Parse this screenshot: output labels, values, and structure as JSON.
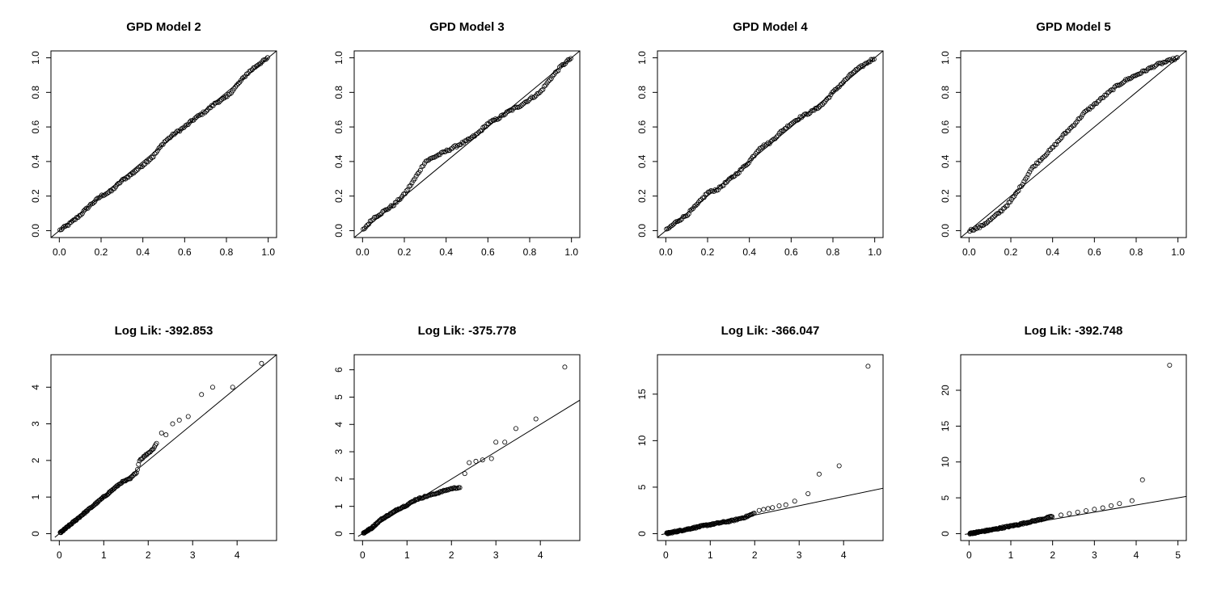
{
  "chart_data": [
    {
      "type": "scatter",
      "title": "GPD Model 2",
      "xlim": [
        0,
        1
      ],
      "ylim": [
        0,
        1
      ],
      "xticks": [
        "0.0",
        "0.2",
        "0.4",
        "0.6",
        "0.8",
        "1.0"
      ],
      "yticks": [
        "0.0",
        "0.2",
        "0.4",
        "0.6",
        "0.8",
        "1.0"
      ],
      "reference_line": [
        [
          0,
          0
        ],
        [
          1,
          1
        ]
      ],
      "curve": [
        [
          0,
          0
        ],
        [
          0.05,
          0.04
        ],
        [
          0.1,
          0.09
        ],
        [
          0.15,
          0.15
        ],
        [
          0.2,
          0.2
        ],
        [
          0.25,
          0.23
        ],
        [
          0.3,
          0.29
        ],
        [
          0.35,
          0.33
        ],
        [
          0.4,
          0.38
        ],
        [
          0.45,
          0.43
        ],
        [
          0.5,
          0.51
        ],
        [
          0.55,
          0.56
        ],
        [
          0.6,
          0.6
        ],
        [
          0.65,
          0.65
        ],
        [
          0.7,
          0.69
        ],
        [
          0.75,
          0.74
        ],
        [
          0.8,
          0.77
        ],
        [
          0.85,
          0.84
        ],
        [
          0.9,
          0.91
        ],
        [
          0.95,
          0.96
        ],
        [
          1.0,
          1.0
        ]
      ]
    },
    {
      "type": "scatter",
      "title": "GPD Model 3",
      "xlim": [
        0,
        1
      ],
      "ylim": [
        0,
        1
      ],
      "xticks": [
        "0.0",
        "0.2",
        "0.4",
        "0.6",
        "0.8",
        "1.0"
      ],
      "yticks": [
        "0.0",
        "0.2",
        "0.4",
        "0.6",
        "0.8",
        "1.0"
      ],
      "reference_line": [
        [
          0,
          0
        ],
        [
          1,
          1
        ]
      ],
      "curve": [
        [
          0,
          0
        ],
        [
          0.05,
          0.07
        ],
        [
          0.1,
          0.11
        ],
        [
          0.15,
          0.15
        ],
        [
          0.2,
          0.21
        ],
        [
          0.25,
          0.3
        ],
        [
          0.3,
          0.4
        ],
        [
          0.35,
          0.43
        ],
        [
          0.4,
          0.46
        ],
        [
          0.45,
          0.49
        ],
        [
          0.5,
          0.52
        ],
        [
          0.55,
          0.56
        ],
        [
          0.6,
          0.62
        ],
        [
          0.65,
          0.65
        ],
        [
          0.7,
          0.69
        ],
        [
          0.75,
          0.72
        ],
        [
          0.8,
          0.76
        ],
        [
          0.85,
          0.8
        ],
        [
          0.9,
          0.88
        ],
        [
          0.95,
          0.95
        ],
        [
          1.0,
          1.0
        ]
      ]
    },
    {
      "type": "scatter",
      "title": "GPD Model 4",
      "xlim": [
        0,
        1
      ],
      "ylim": [
        0,
        1
      ],
      "xticks": [
        "0.0",
        "0.2",
        "0.4",
        "0.6",
        "0.8",
        "1.0"
      ],
      "yticks": [
        "0.0",
        "0.2",
        "0.4",
        "0.6",
        "0.8",
        "1.0"
      ],
      "reference_line": [
        [
          0,
          0
        ],
        [
          1,
          1
        ]
      ],
      "curve": [
        [
          0,
          0
        ],
        [
          0.05,
          0.05
        ],
        [
          0.1,
          0.09
        ],
        [
          0.15,
          0.15
        ],
        [
          0.2,
          0.22
        ],
        [
          0.25,
          0.24
        ],
        [
          0.3,
          0.29
        ],
        [
          0.35,
          0.34
        ],
        [
          0.4,
          0.4
        ],
        [
          0.45,
          0.48
        ],
        [
          0.5,
          0.51
        ],
        [
          0.55,
          0.57
        ],
        [
          0.6,
          0.62
        ],
        [
          0.65,
          0.66
        ],
        [
          0.7,
          0.69
        ],
        [
          0.75,
          0.73
        ],
        [
          0.8,
          0.8
        ],
        [
          0.85,
          0.86
        ],
        [
          0.9,
          0.92
        ],
        [
          0.95,
          0.96
        ],
        [
          1.0,
          1.0
        ]
      ]
    },
    {
      "type": "scatter",
      "title": "GPD Model 5",
      "xlim": [
        0,
        1
      ],
      "ylim": [
        0,
        1
      ],
      "xticks": [
        "0.0",
        "0.2",
        "0.4",
        "0.6",
        "0.8",
        "1.0"
      ],
      "yticks": [
        "0.0",
        "0.2",
        "0.4",
        "0.6",
        "0.8",
        "1.0"
      ],
      "reference_line": [
        [
          0,
          0
        ],
        [
          1,
          1
        ]
      ],
      "curve": [
        [
          0,
          0
        ],
        [
          0.05,
          0.02
        ],
        [
          0.1,
          0.06
        ],
        [
          0.15,
          0.11
        ],
        [
          0.2,
          0.17
        ],
        [
          0.25,
          0.26
        ],
        [
          0.3,
          0.36
        ],
        [
          0.35,
          0.42
        ],
        [
          0.4,
          0.48
        ],
        [
          0.45,
          0.55
        ],
        [
          0.5,
          0.61
        ],
        [
          0.55,
          0.68
        ],
        [
          0.6,
          0.73
        ],
        [
          0.65,
          0.78
        ],
        [
          0.7,
          0.83
        ],
        [
          0.75,
          0.87
        ],
        [
          0.8,
          0.9
        ],
        [
          0.85,
          0.93
        ],
        [
          0.9,
          0.96
        ],
        [
          0.95,
          0.98
        ],
        [
          1.0,
          1.0
        ]
      ]
    },
    {
      "type": "scatter",
      "title": "Log Lik: -392.853",
      "xlim": [
        0,
        4.7
      ],
      "ylim": [
        0,
        4.7
      ],
      "xticks": [
        "0",
        "1",
        "2",
        "3",
        "4"
      ],
      "yticks": [
        "0",
        "1",
        "2",
        "3",
        "4"
      ],
      "reference_line": [
        [
          0,
          0
        ],
        [
          4.7,
          4.7
        ]
      ],
      "curve": [
        [
          0.02,
          0.02
        ],
        [
          0.2,
          0.2
        ],
        [
          0.5,
          0.5
        ],
        [
          0.8,
          0.8
        ],
        [
          1.1,
          1.1
        ],
        [
          1.4,
          1.4
        ],
        [
          1.6,
          1.5
        ],
        [
          1.75,
          1.7
        ],
        [
          1.8,
          2.0
        ],
        [
          1.9,
          2.1
        ],
        [
          2.1,
          2.3
        ],
        [
          2.2,
          2.5
        ]
      ],
      "tail": [
        [
          2.3,
          2.75
        ],
        [
          2.4,
          2.7
        ],
        [
          2.55,
          3.0
        ],
        [
          2.7,
          3.1
        ],
        [
          2.9,
          3.2
        ],
        [
          3.2,
          3.8
        ],
        [
          3.45,
          4.0
        ],
        [
          3.9,
          4.0
        ],
        [
          4.55,
          4.65
        ]
      ]
    },
    {
      "type": "scatter",
      "title": "Log Lik: -375.778",
      "xlim": [
        0,
        4.7
      ],
      "ylim": [
        0,
        6.3
      ],
      "xticks": [
        "0",
        "1",
        "2",
        "3",
        "4"
      ],
      "yticks": [
        "0",
        "1",
        "2",
        "3",
        "4",
        "5",
        "6"
      ],
      "reference_line": [
        [
          0,
          0
        ],
        [
          4.7,
          4.7
        ]
      ],
      "curve": [
        [
          0.02,
          0.02
        ],
        [
          0.2,
          0.2
        ],
        [
          0.4,
          0.5
        ],
        [
          0.6,
          0.7
        ],
        [
          0.8,
          0.9
        ],
        [
          1.0,
          1.05
        ],
        [
          1.2,
          1.25
        ],
        [
          1.4,
          1.35
        ],
        [
          1.6,
          1.45
        ],
        [
          1.8,
          1.55
        ],
        [
          2.0,
          1.65
        ],
        [
          2.2,
          1.7
        ]
      ],
      "tail": [
        [
          2.3,
          2.2
        ],
        [
          2.4,
          2.6
        ],
        [
          2.55,
          2.65
        ],
        [
          2.7,
          2.7
        ],
        [
          2.9,
          2.75
        ],
        [
          3.0,
          3.35
        ],
        [
          3.2,
          3.35
        ],
        [
          3.45,
          3.85
        ],
        [
          3.9,
          4.2
        ],
        [
          4.55,
          6.1
        ]
      ]
    },
    {
      "type": "scatter",
      "title": "Log Lik: -366.047",
      "xlim": [
        0,
        4.7
      ],
      "ylim": [
        0,
        18.5
      ],
      "xticks": [
        "0",
        "1",
        "2",
        "3",
        "4"
      ],
      "yticks": [
        "0",
        "5",
        "10",
        "15"
      ],
      "reference_line": [
        [
          0,
          0
        ],
        [
          4.7,
          4.7
        ]
      ],
      "curve": [
        [
          0.02,
          0.02
        ],
        [
          0.3,
          0.3
        ],
        [
          0.6,
          0.6
        ],
        [
          0.9,
          0.9
        ],
        [
          1.2,
          1.15
        ],
        [
          1.5,
          1.4
        ],
        [
          1.8,
          1.8
        ],
        [
          2.0,
          2.2
        ]
      ],
      "tail": [
        [
          2.1,
          2.5
        ],
        [
          2.2,
          2.6
        ],
        [
          2.3,
          2.7
        ],
        [
          2.4,
          2.8
        ],
        [
          2.55,
          3.0
        ],
        [
          2.7,
          3.1
        ],
        [
          2.9,
          3.5
        ],
        [
          3.2,
          4.3
        ],
        [
          3.45,
          6.4
        ],
        [
          3.9,
          7.3
        ],
        [
          4.55,
          18.0
        ]
      ]
    },
    {
      "type": "scatter",
      "title": "Log Lik: -392.748",
      "xlim": [
        0,
        5
      ],
      "ylim": [
        0,
        24
      ],
      "xticks": [
        "0",
        "1",
        "2",
        "3",
        "4",
        "5"
      ],
      "yticks": [
        "0",
        "5",
        "10",
        "15",
        "20"
      ],
      "reference_line": [
        [
          0,
          0
        ],
        [
          5,
          5
        ]
      ],
      "curve": [
        [
          0.02,
          0.02
        ],
        [
          0.3,
          0.3
        ],
        [
          0.6,
          0.6
        ],
        [
          0.9,
          0.95
        ],
        [
          1.2,
          1.3
        ],
        [
          1.5,
          1.7
        ],
        [
          1.8,
          2.1
        ],
        [
          2.0,
          2.4
        ]
      ],
      "tail": [
        [
          2.2,
          2.6
        ],
        [
          2.4,
          2.8
        ],
        [
          2.6,
          3.0
        ],
        [
          2.8,
          3.2
        ],
        [
          3.0,
          3.4
        ],
        [
          3.2,
          3.6
        ],
        [
          3.4,
          3.9
        ],
        [
          3.6,
          4.2
        ],
        [
          3.9,
          4.6
        ],
        [
          4.15,
          7.5
        ],
        [
          4.8,
          23.5
        ]
      ]
    }
  ]
}
